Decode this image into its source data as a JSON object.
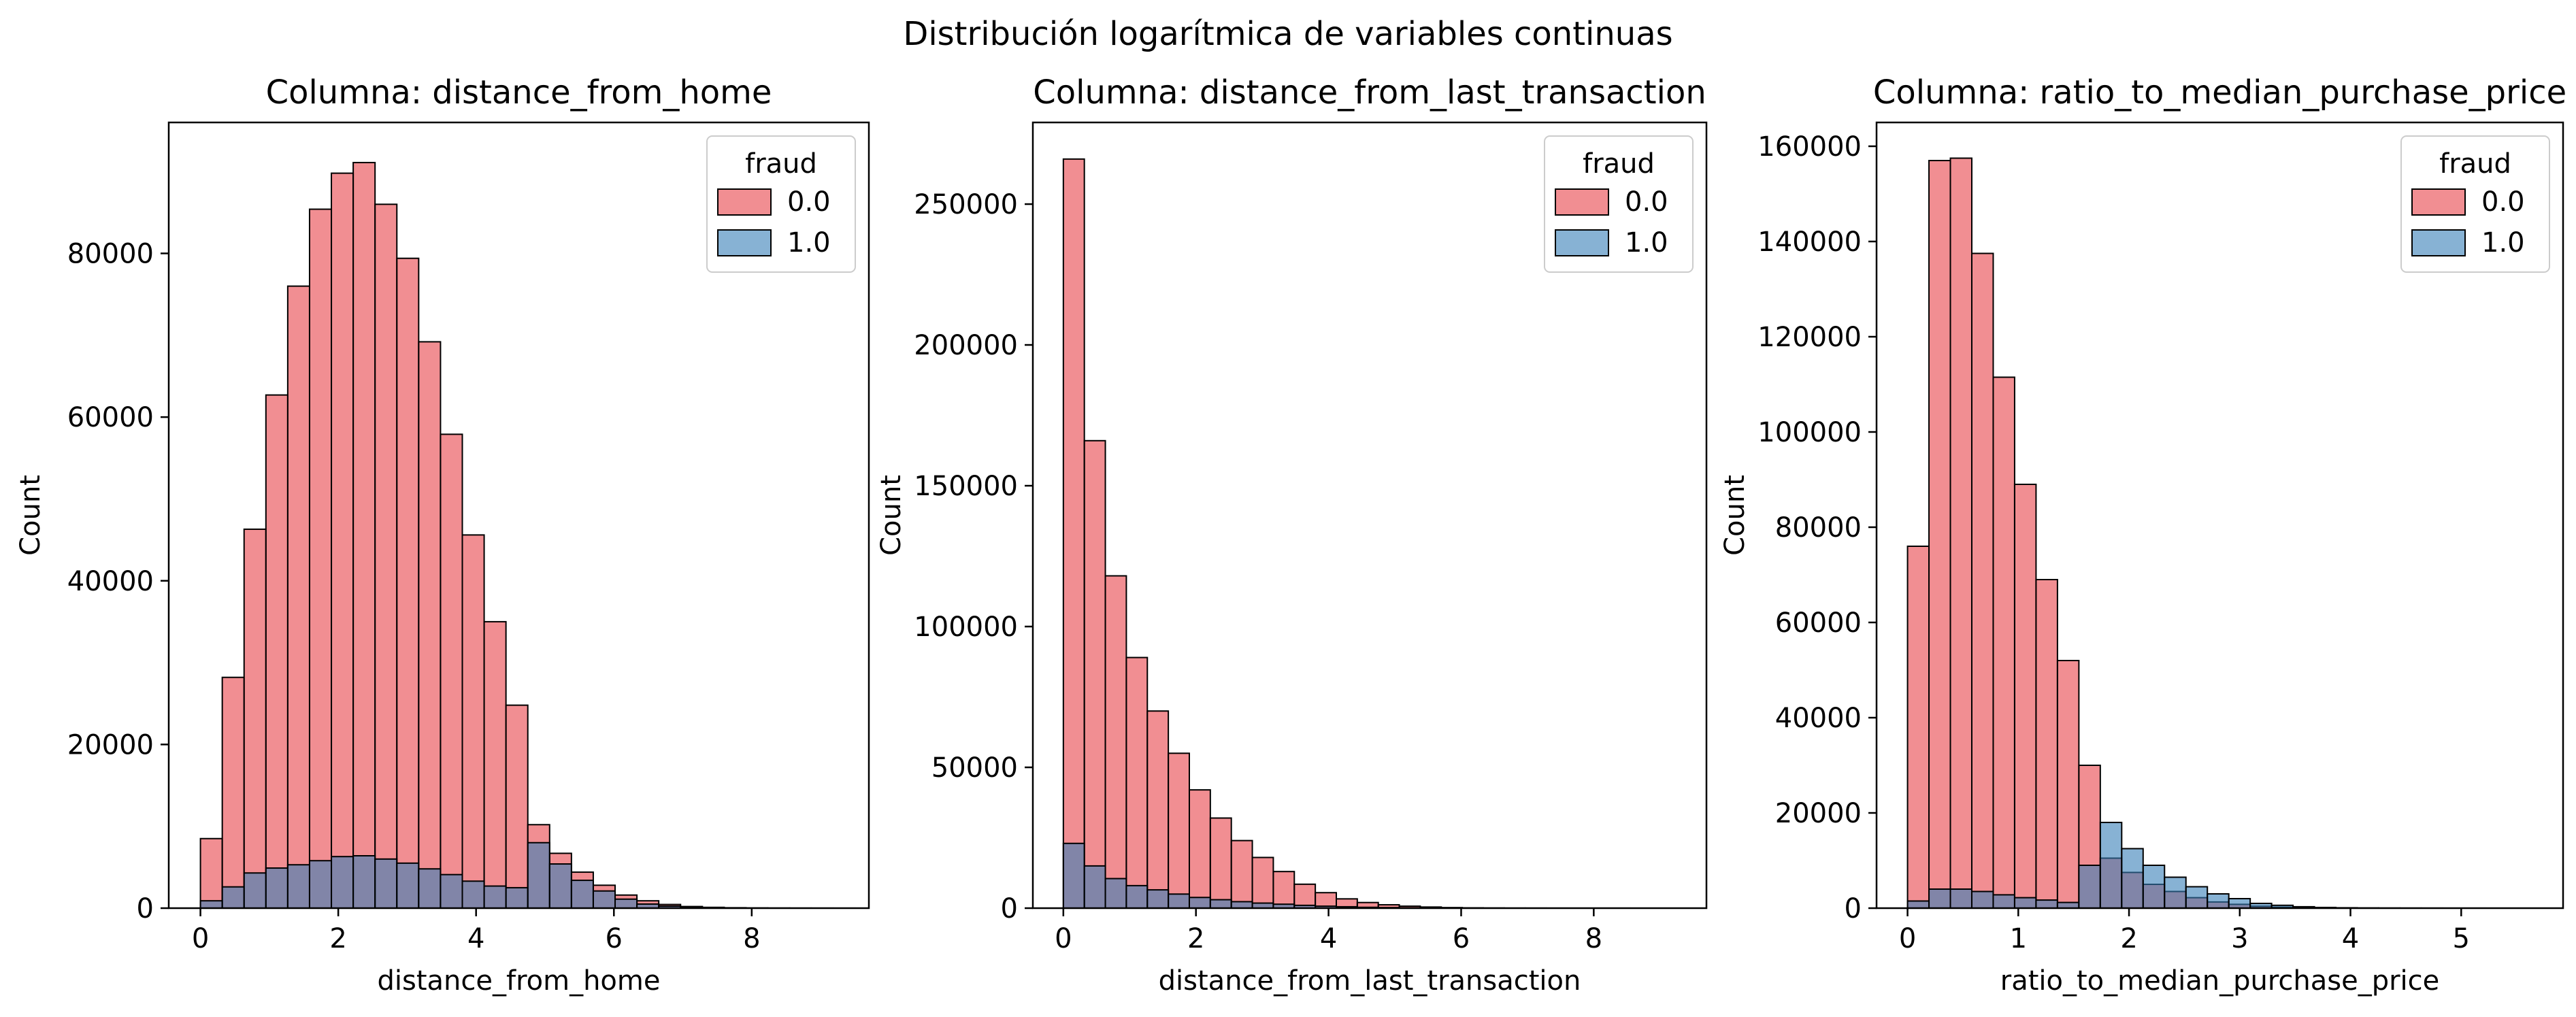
{
  "suptitle": "Distribución logarítmica de variables continuas",
  "colors": {
    "fraud_0": "#e8434a",
    "fraud_1": "#377eb8",
    "edge": "#000000"
  },
  "chart_data": [
    {
      "type": "bar",
      "title": "Columna: distance_from_home",
      "xlabel": "distance_from_home",
      "ylabel": "Count",
      "xlim": [
        -0.46,
        9.7
      ],
      "ylim": [
        0,
        96000
      ],
      "xticks": [
        0,
        2,
        4,
        6,
        8
      ],
      "yticks": [
        0,
        20000,
        40000,
        60000,
        80000
      ],
      "legend": {
        "title": "fraud",
        "position": "top-right",
        "entries": [
          "0.0",
          "1.0"
        ]
      },
      "bin_start": 0,
      "bin_width": 0.3167,
      "series": [
        {
          "name": "0.0",
          "values": [
            8500,
            28200,
            46300,
            62700,
            76000,
            85400,
            89800,
            91100,
            86000,
            79400,
            69200,
            57900,
            45600,
            35000,
            24800,
            10200,
            6700,
            4400,
            2800,
            1600,
            900,
            450,
            200,
            100,
            50,
            20,
            10,
            5,
            2,
            1
          ]
        },
        {
          "name": "1.0",
          "values": [
            900,
            2600,
            4300,
            4900,
            5300,
            5800,
            6300,
            6400,
            6000,
            5500,
            4800,
            4100,
            3300,
            2700,
            2500,
            8000,
            5400,
            3400,
            2100,
            1100,
            500,
            250,
            100,
            50,
            20,
            10,
            5,
            2,
            1,
            0
          ]
        }
      ]
    },
    {
      "type": "bar",
      "title": "Columna: distance_from_last_transaction",
      "xlabel": "distance_from_last_transaction",
      "ylabel": "Count",
      "xlim": [
        -0.46,
        9.7
      ],
      "ylim": [
        0,
        279000
      ],
      "xticks": [
        0,
        2,
        4,
        6,
        8
      ],
      "yticks": [
        0,
        50000,
        100000,
        150000,
        200000,
        250000
      ],
      "legend": {
        "title": "fraud",
        "position": "top-right",
        "entries": [
          "0.0",
          "1.0"
        ]
      },
      "bin_start": 0,
      "bin_width": 0.3167,
      "series": [
        {
          "name": "0.0",
          "values": [
            266000,
            166000,
            118000,
            89000,
            70000,
            55000,
            42000,
            32000,
            24000,
            18000,
            13000,
            8500,
            5500,
            3300,
            2000,
            1200,
            700,
            400,
            200,
            100,
            50,
            20,
            10,
            5,
            2,
            1,
            1,
            0,
            0,
            0
          ]
        },
        {
          "name": "1.0",
          "values": [
            23000,
            15000,
            10500,
            8000,
            6500,
            5000,
            3800,
            3000,
            2300,
            1800,
            1400,
            1000,
            700,
            500,
            300,
            200,
            100,
            50,
            20,
            10,
            5,
            2,
            1,
            0,
            0,
            0,
            0,
            0,
            0,
            0
          ]
        }
      ]
    },
    {
      "type": "bar",
      "title": "Columna: ratio_to_median_purchase_price",
      "xlabel": "ratio_to_median_purchase_price",
      "ylabel": "Count",
      "xlim": [
        -0.28,
        5.92
      ],
      "ylim": [
        0,
        165000
      ],
      "xticks": [
        0,
        1,
        2,
        3,
        4,
        5
      ],
      "yticks": [
        0,
        20000,
        40000,
        60000,
        80000,
        100000,
        120000,
        140000,
        160000
      ],
      "legend": {
        "title": "fraud",
        "position": "top-right",
        "entries": [
          "0.0",
          "1.0"
        ]
      },
      "bin_start": 0,
      "bin_width": 0.1934,
      "series": [
        {
          "name": "0.0",
          "values": [
            76000,
            157000,
            157500,
            137500,
            111500,
            89000,
            69000,
            52000,
            30000,
            10500,
            7500,
            5000,
            3500,
            2200,
            1300,
            800,
            400,
            200,
            100,
            50,
            20,
            10,
            5,
            2,
            1,
            0,
            0,
            0,
            0,
            0
          ]
        },
        {
          "name": "1.0",
          "values": [
            1500,
            4000,
            4000,
            3500,
            2800,
            2200,
            1700,
            1200,
            9000,
            18000,
            12500,
            9000,
            6500,
            4500,
            3000,
            2000,
            1000,
            600,
            300,
            150,
            80,
            40,
            20,
            10,
            5,
            2,
            1,
            0,
            0,
            0
          ]
        }
      ]
    }
  ]
}
